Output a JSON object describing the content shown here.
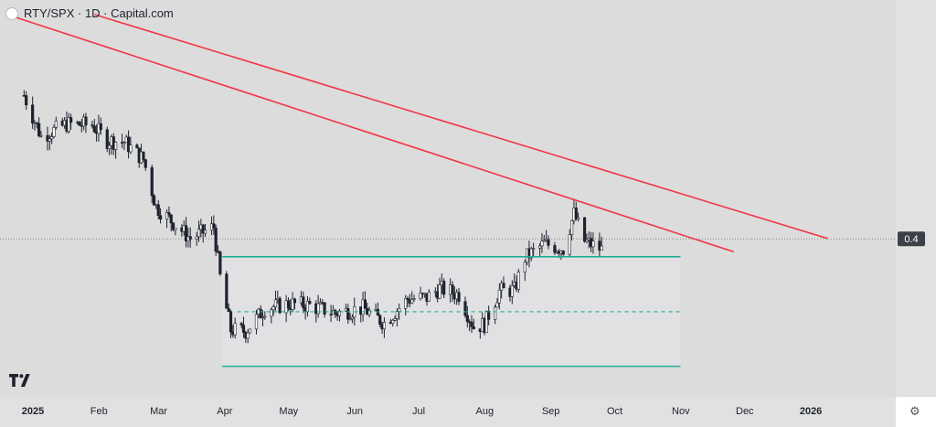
{
  "header": {
    "title": "RTY/SPX · 1D · Capital.com"
  },
  "price_label": "0.4",
  "colors": {
    "background": "#dcdcdc",
    "candle": "#1e222d",
    "trendline": "#f23645",
    "channel": "#22ab94",
    "range_fill": "#e1e1e4",
    "axis_text": "#1e222d"
  },
  "chart_data": {
    "type": "candlestick",
    "title": "RTY/SPX · 1D · Capital.com",
    "xlabel": "",
    "ylabel": "",
    "x_axis": {
      "labels": [
        "2025",
        "Feb",
        "Mar",
        "Apr",
        "May",
        "Jun",
        "Jul",
        "Aug",
        "Sep",
        "Oct",
        "Nov",
        "Dec",
        "2026"
      ],
      "range": [
        "2025-01-01",
        "2026-02-15"
      ]
    },
    "last_value_label": "0.4",
    "key_points": [
      {
        "date": "2025-01-02",
        "value": 0.434
      },
      {
        "date": "2025-01-10",
        "value": 0.4232
      },
      {
        "date": "2025-01-22",
        "value": 0.4265
      },
      {
        "date": "2025-02-03",
        "value": 0.4262
      },
      {
        "date": "2025-02-10",
        "value": 0.4222
      },
      {
        "date": "2025-02-18",
        "value": 0.4218
      },
      {
        "date": "2025-02-27",
        "value": 0.4172
      },
      {
        "date": "2025-03-05",
        "value": 0.4048
      },
      {
        "date": "2025-03-12",
        "value": 0.4012
      },
      {
        "date": "2025-03-21",
        "value": 0.3965
      },
      {
        "date": "2025-04-01",
        "value": 0.3995
      },
      {
        "date": "2025-04-04",
        "value": 0.3864
      },
      {
        "date": "2025-04-09",
        "value": 0.3725
      },
      {
        "date": "2025-04-16",
        "value": 0.3722
      },
      {
        "date": "2025-04-25",
        "value": 0.3782
      },
      {
        "date": "2025-05-07",
        "value": 0.3794
      },
      {
        "date": "2025-05-16",
        "value": 0.3789
      },
      {
        "date": "2025-05-28",
        "value": 0.377
      },
      {
        "date": "2025-06-10",
        "value": 0.3782
      },
      {
        "date": "2025-06-20",
        "value": 0.3744
      },
      {
        "date": "2025-07-01",
        "value": 0.3806
      },
      {
        "date": "2025-07-10",
        "value": 0.381
      },
      {
        "date": "2025-07-16",
        "value": 0.3834
      },
      {
        "date": "2025-07-25",
        "value": 0.3818
      },
      {
        "date": "2025-08-01",
        "value": 0.3733
      },
      {
        "date": "2025-08-06",
        "value": 0.374
      },
      {
        "date": "2025-08-13",
        "value": 0.3827
      },
      {
        "date": "2025-08-20",
        "value": 0.383
      },
      {
        "date": "2025-08-25",
        "value": 0.3914
      },
      {
        "date": "2025-09-03",
        "value": 0.3951
      },
      {
        "date": "2025-09-12",
        "value": 0.3938
      },
      {
        "date": "2025-09-17",
        "value": 0.403
      },
      {
        "date": "2025-09-22",
        "value": 0.3958
      },
      {
        "date": "2025-09-30",
        "value": 0.3936
      }
    ],
    "annotations": [
      {
        "type": "trendline",
        "color": "red",
        "from": {
          "date": "2024-12-25",
          "value": 0.4552
        },
        "to": {
          "date": "2025-12-01",
          "value": 0.393
        }
      },
      {
        "type": "trendline",
        "color": "red",
        "from": {
          "date": "2025-02-04",
          "value": 0.4552
        },
        "to": {
          "date": "2026-01-14",
          "value": 0.3965
        }
      },
      {
        "type": "horizontal",
        "color": "green",
        "date_range": [
          "2025-04-05",
          "2025-11-06"
        ],
        "value": 0.3917
      },
      {
        "type": "horizontal",
        "color": "green",
        "date_range": [
          "2025-04-05",
          "2025-11-06"
        ],
        "value": 0.363
      },
      {
        "type": "horizontal",
        "style": "dashed",
        "color": "green",
        "date_range": [
          "2025-04-12",
          "2025-11-06"
        ],
        "value": 0.3773
      },
      {
        "type": "horizontal",
        "style": "dotted",
        "color": "gray",
        "value": 0.3964
      }
    ],
    "y_range": [
      0.355,
      0.459
    ],
    "grid": false,
    "legend": "none"
  }
}
